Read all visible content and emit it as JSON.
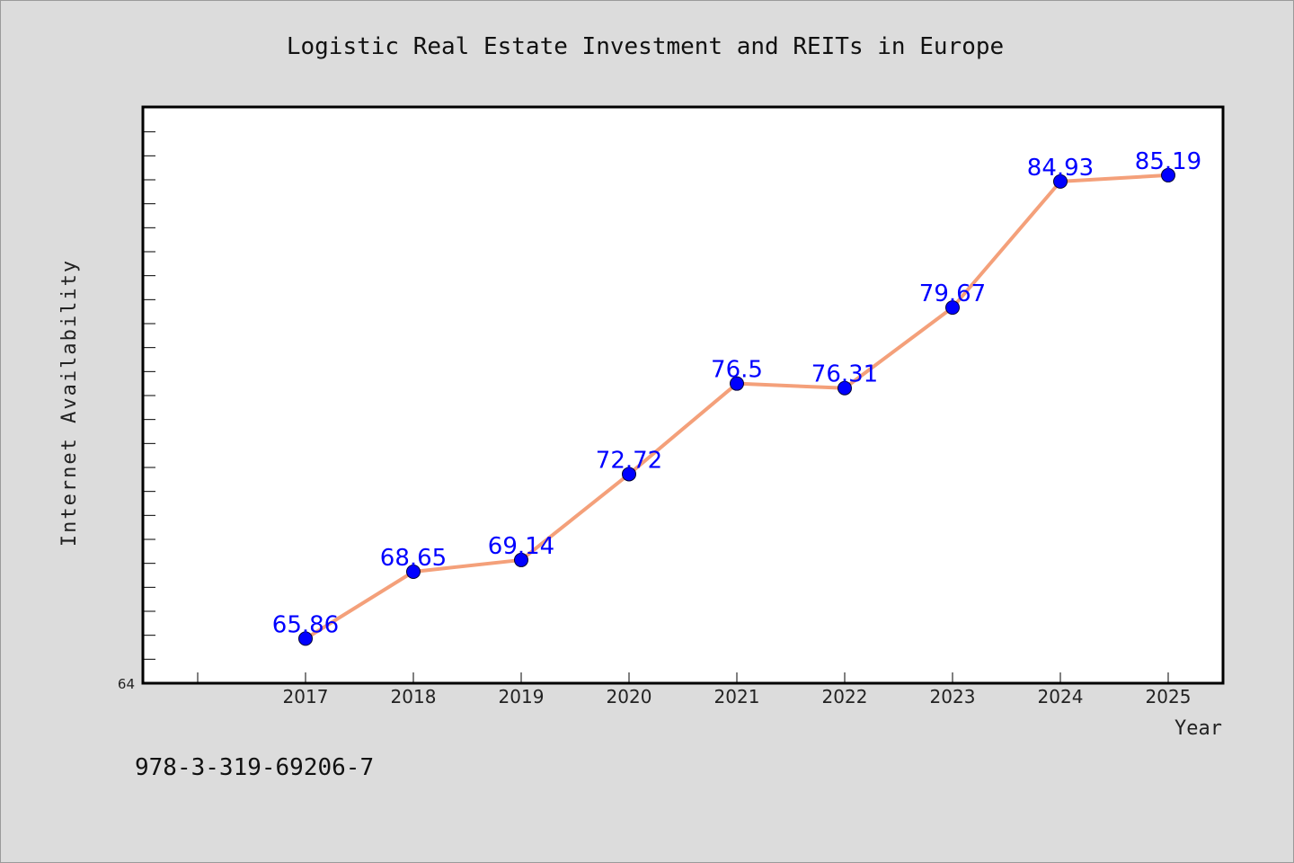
{
  "chart_data": {
    "type": "line",
    "title": "Logistic Real Estate Investment and REITs in Europe",
    "xlabel": "Year",
    "ylabel": "Internet Availability",
    "categories": [
      "2017",
      "2018",
      "2019",
      "2020",
      "2021",
      "2022",
      "2023",
      "2024",
      "2025"
    ],
    "series": [
      {
        "values": [
          65.86,
          68.65,
          69.14,
          72.72,
          76.5,
          76.31,
          79.67,
          84.93,
          85.19
        ]
      }
    ],
    "data_labels": [
      "65.86",
      "68.65",
      "69.14",
      "72.72",
      "76.5",
      "76.31",
      "79.67",
      "84.93",
      "85.19"
    ],
    "ylim": [
      64,
      88
    ],
    "y_tick_labels": [
      "64"
    ],
    "grid": false,
    "colors": {
      "line": "#f4a07a",
      "marker": "#0000ff",
      "data_label": "#0000ff",
      "background": "#dcdcdc",
      "plot_background": "#ffffff"
    }
  },
  "footnote": "978-3-319-69206-7"
}
